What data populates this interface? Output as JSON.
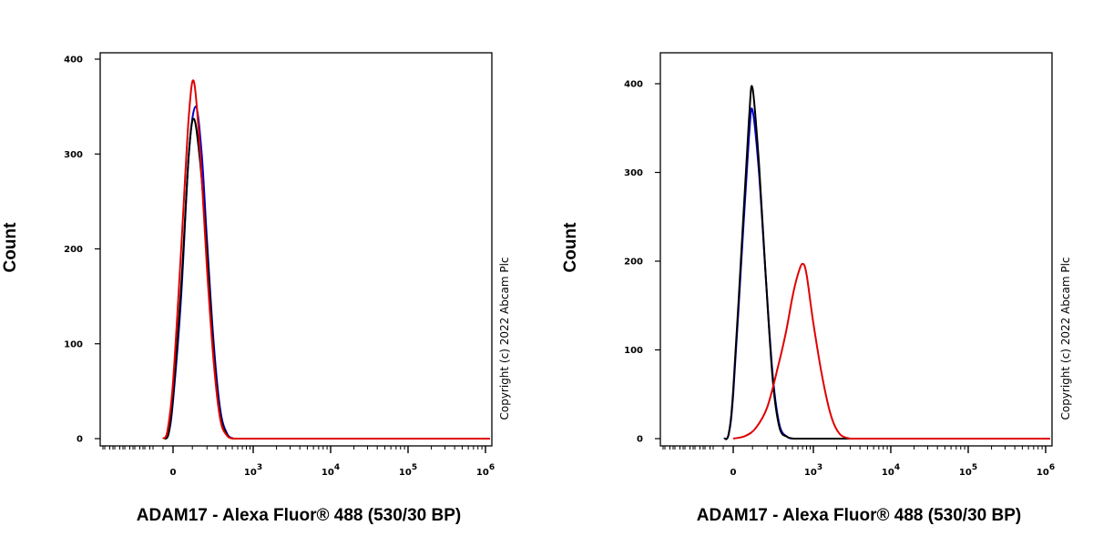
{
  "chart_data": [
    {
      "type": "line",
      "panel": "left",
      "ylabel": "Count",
      "xlabel": "ADAM17 - Alexa Fluor® 488 (530/30 BP)",
      "copyright": "Copyright (c) 2022 Abcam Plc",
      "x_scale": "biexponential",
      "x_tick_labels": [
        {
          "text": "0",
          "exp": ""
        },
        {
          "text": "10",
          "exp": "3"
        },
        {
          "text": "10",
          "exp": "4"
        },
        {
          "text": "10",
          "exp": "5"
        },
        {
          "text": "10",
          "exp": "6"
        }
      ],
      "y_tick_labels": [
        "0",
        "100",
        "200",
        "300",
        "400"
      ],
      "ylim": [
        0,
        400
      ],
      "grid": false,
      "series": [
        {
          "color": "#0000cc",
          "peak_x": 120,
          "peak_y": 350,
          "x": [
            -80,
            -40,
            0,
            40,
            80,
            120,
            160,
            200,
            260,
            330,
            420,
            520
          ],
          "y": [
            0,
            5,
            40,
            150,
            300,
            350,
            300,
            210,
            100,
            30,
            5,
            0
          ]
        },
        {
          "color": "#000000",
          "peak_x": 110,
          "peak_y": 337,
          "x": [
            -80,
            -40,
            0,
            40,
            80,
            110,
            150,
            200,
            260,
            330,
            420,
            520
          ],
          "y": [
            0,
            5,
            45,
            160,
            300,
            337,
            290,
            200,
            90,
            25,
            4,
            0
          ]
        },
        {
          "color": "#e00000",
          "peak_x": 110,
          "peak_y": 376,
          "x": [
            -90,
            -50,
            0,
            40,
            80,
            110,
            150,
            200,
            260,
            330,
            420,
            520
          ],
          "y": [
            0,
            8,
            60,
            200,
            340,
            376,
            300,
            180,
            80,
            20,
            3,
            0
          ]
        }
      ]
    },
    {
      "type": "line",
      "panel": "right",
      "ylabel": "Count",
      "xlabel": "ADAM17 - Alexa Fluor® 488 (530/30 BP)",
      "copyright": "Copyright (c) 2022 Abcam Plc",
      "x_scale": "biexponential",
      "x_tick_labels": [
        {
          "text": "0",
          "exp": ""
        },
        {
          "text": "10",
          "exp": "3"
        },
        {
          "text": "10",
          "exp": "4"
        },
        {
          "text": "10",
          "exp": "5"
        },
        {
          "text": "10",
          "exp": "6"
        }
      ],
      "y_tick_labels": [
        "0",
        "100",
        "200",
        "300",
        "400"
      ],
      "ylim": [
        0,
        435
      ],
      "grid": false,
      "series": [
        {
          "color": "#0000cc",
          "peak_x": 100,
          "peak_y": 370,
          "x": [
            -80,
            -40,
            0,
            40,
            80,
            100,
            140,
            190,
            250,
            320,
            420,
            520
          ],
          "y": [
            0,
            5,
            50,
            200,
            340,
            370,
            300,
            180,
            70,
            15,
            2,
            0
          ]
        },
        {
          "color": "#000000",
          "peak_x": 100,
          "peak_y": 395,
          "x": [
            -80,
            -40,
            0,
            40,
            80,
            100,
            140,
            190,
            250,
            320,
            420,
            520
          ],
          "y": [
            0,
            5,
            55,
            210,
            360,
            395,
            310,
            180,
            65,
            12,
            2,
            0
          ]
        },
        {
          "color": "#e00000",
          "peak_x": 700,
          "peak_y": 197,
          "x": [
            0,
            60,
            120,
            200,
            300,
            400,
            500,
            600,
            700,
            800,
            1000,
            1300,
            1700,
            2200,
            3000
          ],
          "y": [
            0,
            3,
            12,
            35,
            80,
            120,
            160,
            185,
            197,
            185,
            130,
            70,
            25,
            5,
            0
          ]
        }
      ]
    }
  ]
}
